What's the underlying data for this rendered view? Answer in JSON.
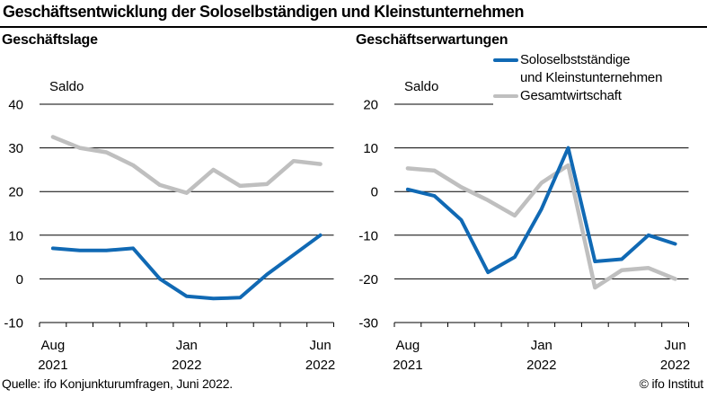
{
  "title": "Geschäftsentwicklung der Soloselbständigen und Kleinstunternehmen",
  "panels": [
    {
      "header": "Geschäftslage"
    },
    {
      "header": "Geschäftserwartungen"
    }
  ],
  "legend": {
    "items": [
      {
        "label_lines": [
          "Soloselbstständige",
          "und Kleinstunternehmen"
        ],
        "color": "#1069b4"
      },
      {
        "label_lines": [
          "Gesamtwirtschaft"
        ],
        "color": "#bfbfbf"
      }
    ]
  },
  "footer": {
    "source": "Quelle: ifo Konjunkturumfragen, Juni 2022.",
    "copyright": "© ifo Institut"
  },
  "colors": {
    "solo_blue": "#1069b4",
    "gesamt_gray": "#bfbfbf",
    "axis": "#000000",
    "background": "#ffffff"
  },
  "chart_data": [
    {
      "type": "line",
      "title": "Geschäftslage",
      "ylabel": "Saldo",
      "grid": true,
      "legend_position": "top-right-of-figure",
      "categories": [
        "Aug 2021",
        "Sep 2021",
        "Okt 2021",
        "Nov 2021",
        "Dez 2021",
        "Jan 2022",
        "Feb 2022",
        "Mär 2022",
        "Apr 2022",
        "Mai 2022",
        "Jun 2022"
      ],
      "ylim": [
        -10,
        40
      ],
      "yticks": [
        40,
        30,
        20,
        10,
        0,
        -10
      ],
      "xticks_shown": [
        {
          "index": 0,
          "month": "Aug",
          "year": "2021"
        },
        {
          "index": 5,
          "month": "Jan",
          "year": "2022"
        },
        {
          "index": 10,
          "month": "Jun",
          "year": "2022"
        }
      ],
      "series": [
        {
          "name": "Soloselbstständige und Kleinstunternehmen",
          "color": "#1069b4",
          "width": 4,
          "values": [
            7,
            6.5,
            6.5,
            7,
            0,
            -4,
            -4.5,
            -4.3,
            1,
            5.5,
            10
          ]
        },
        {
          "name": "Gesamtwirtschaft",
          "color": "#bfbfbf",
          "width": 4.5,
          "values": [
            32.5,
            30,
            29,
            26,
            21.5,
            19.7,
            25,
            21.3,
            21.7,
            27,
            26.3
          ]
        }
      ]
    },
    {
      "type": "line",
      "title": "Geschäftserwartungen",
      "ylabel": "Saldo",
      "grid": true,
      "categories": [
        "Aug 2021",
        "Sep 2021",
        "Okt 2021",
        "Nov 2021",
        "Dez 2021",
        "Jan 2022",
        "Feb 2022",
        "Mär 2022",
        "Apr 2022",
        "Mai 2022",
        "Jun 2022"
      ],
      "ylim": [
        -30,
        20
      ],
      "yticks": [
        20,
        10,
        0,
        -10,
        -20,
        -30
      ],
      "xticks_shown": [
        {
          "index": 0,
          "month": "Aug",
          "year": "2021"
        },
        {
          "index": 5,
          "month": "Jan",
          "year": "2022"
        },
        {
          "index": 10,
          "month": "Jun",
          "year": "2022"
        }
      ],
      "series": [
        {
          "name": "Soloselbstständige und Kleinstunternehmen",
          "color": "#1069b4",
          "width": 4,
          "values": [
            0.5,
            -1,
            -6.5,
            -18.5,
            -15,
            -4,
            10,
            -16,
            -15.5,
            -10,
            -12
          ]
        },
        {
          "name": "Gesamtwirtschaft",
          "color": "#bfbfbf",
          "width": 4.5,
          "values": [
            5.3,
            4.8,
            1,
            -2,
            -5.5,
            2,
            6,
            -22,
            -18,
            -17.5,
            -20
          ]
        }
      ]
    }
  ]
}
